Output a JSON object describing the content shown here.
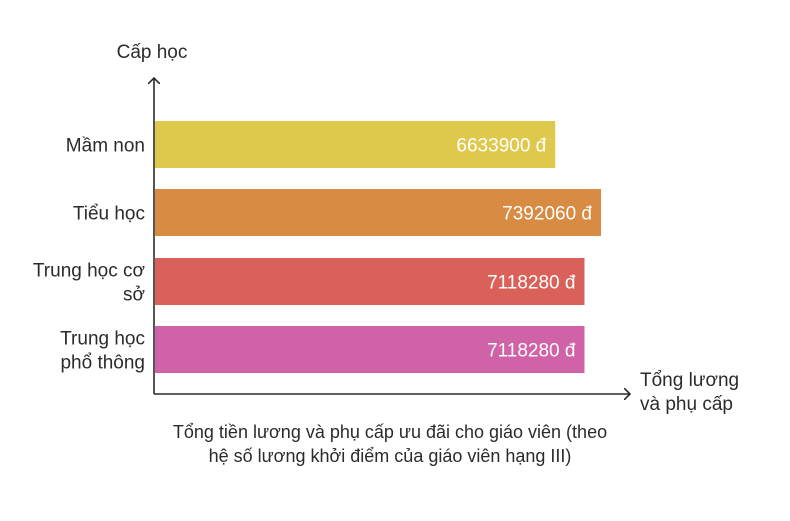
{
  "chart_data": {
    "type": "bar",
    "orientation": "horizontal",
    "ylabel": "Cấp học",
    "xlabel": [
      "Tổng lương",
      "và phụ cấp"
    ],
    "caption": "Tổng tiền lương và phụ cấp ưu đãi cho giáo viên (theo hệ số lương khởi điểm của giáo viên hạng III)",
    "categories": [
      [
        "Mầm non"
      ],
      [
        "Tiểu học"
      ],
      [
        "Trung học cơ",
        "sở"
      ],
      [
        "Trung học",
        "phổ thông"
      ]
    ],
    "values": [
      6633900,
      7392060,
      7118280,
      7118280
    ],
    "value_labels": [
      "6633900 đ",
      "7392060  đ",
      "7118280  đ",
      "7118280 đ"
    ],
    "colors": [
      "#dfc94c",
      "#d88b42",
      "#d9615a",
      "#d062a8"
    ],
    "grid": false
  }
}
